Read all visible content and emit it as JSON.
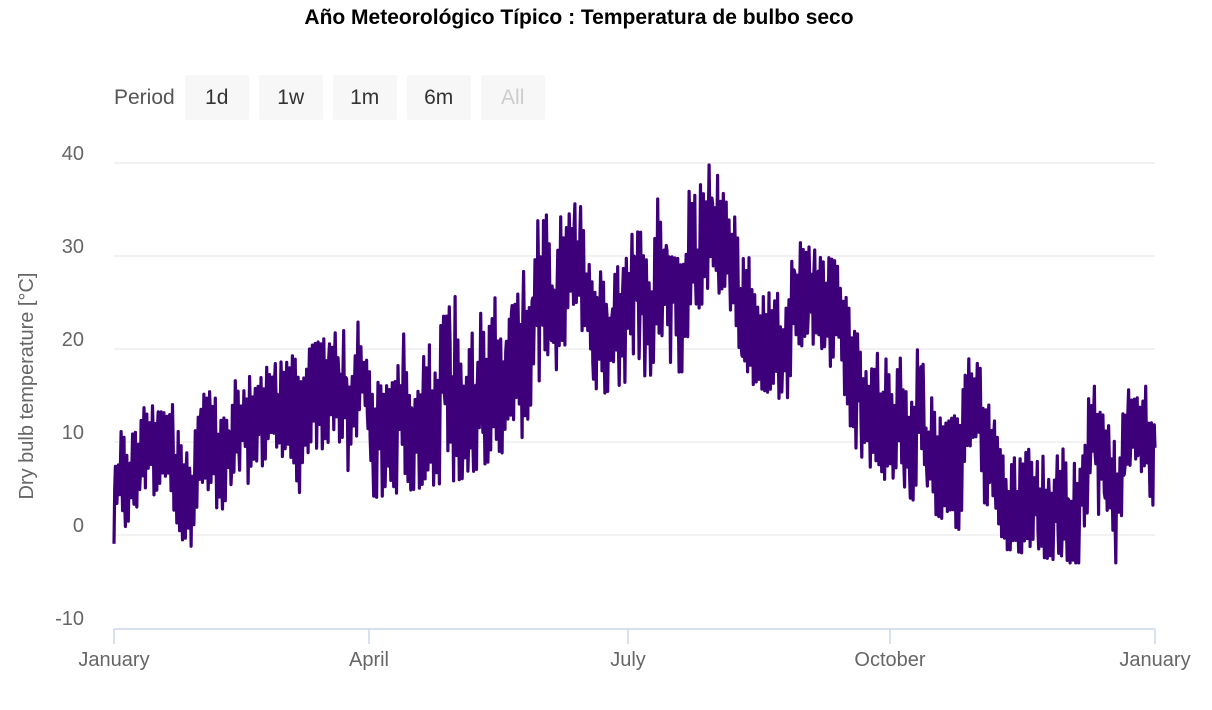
{
  "range_selector": {
    "label": "Period",
    "buttons": [
      {
        "label": "1d",
        "enabled": true
      },
      {
        "label": "1w",
        "enabled": true
      },
      {
        "label": "1m",
        "enabled": true
      },
      {
        "label": "6m",
        "enabled": true
      },
      {
        "label": "All",
        "enabled": false
      }
    ]
  },
  "chart_data": {
    "type": "line",
    "title": "Año Meteorológico Típico : Temperatura de bulbo seco",
    "xlabel": "",
    "ylabel": "Dry bulb temperature [°C]",
    "ylim": [
      -10,
      40
    ],
    "y_ticks": [
      -10,
      0,
      10,
      20,
      30,
      40
    ],
    "x_ticks": [
      "January",
      "April",
      "July",
      "October",
      "January"
    ],
    "grid": "horizontal",
    "line_color": "#3d007a",
    "series": [
      {
        "frequency": "hourly, one typical year",
        "envelope_by_month": [
          {
            "month": "Jan",
            "min": -2,
            "max": 13
          },
          {
            "month": "Feb",
            "min": -2,
            "max": 15
          },
          {
            "month": "Mar",
            "min": 0,
            "max": 19
          },
          {
            "month": "Apr",
            "min": 4,
            "max": 24
          },
          {
            "month": "May",
            "min": 6,
            "max": 32
          },
          {
            "month": "Jun",
            "min": 12,
            "max": 35
          },
          {
            "month": "Jul",
            "min": 17,
            "max": 39
          },
          {
            "month": "Aug",
            "min": 18,
            "max": 40
          },
          {
            "month": "Sep",
            "min": 13,
            "max": 31
          },
          {
            "month": "Oct",
            "min": 5,
            "max": 26
          },
          {
            "month": "Nov",
            "min": -1,
            "max": 18
          },
          {
            "month": "Dec",
            "min": -3,
            "max": 16
          }
        ]
      }
    ]
  }
}
